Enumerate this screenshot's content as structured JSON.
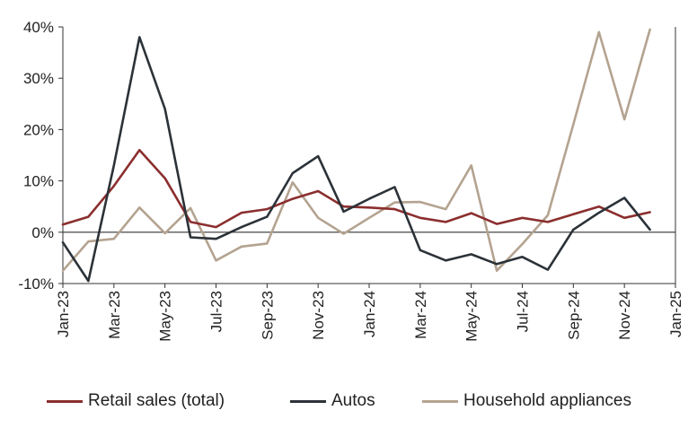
{
  "chart_data": {
    "type": "line",
    "x": [
      "Jan-23",
      "Feb-23",
      "Mar-23",
      "Apr-23",
      "May-23",
      "Jun-23",
      "Jul-23",
      "Aug-23",
      "Sep-23",
      "Oct-23",
      "Nov-23",
      "Dec-23",
      "Jan-24",
      "Feb-24",
      "Mar-24",
      "Apr-24",
      "May-24",
      "Jun-24",
      "Jul-24",
      "Aug-24",
      "Sep-24",
      "Oct-24",
      "Nov-24",
      "Dec-24"
    ],
    "x_ticks": [
      "Jan-23",
      "Mar-23",
      "May-23",
      "Jul-23",
      "Sep-23",
      "Nov-23",
      "Jan-24",
      "Mar-24",
      "May-24",
      "Jul-24",
      "Sep-24",
      "Nov-24",
      "Jan-25"
    ],
    "y_ticks": [
      "40%",
      "30%",
      "20%",
      "10%",
      "0%",
      "-10%"
    ],
    "ylim": [
      -10,
      40
    ],
    "y_unit": "%",
    "grid": false,
    "legend_position": "bottom",
    "series": [
      {
        "name": "Retail sales (total)",
        "color": "#8B2E2E",
        "values": [
          1.5,
          3.0,
          9.0,
          16.0,
          10.5,
          2.0,
          1.0,
          3.8,
          4.5,
          6.5,
          8.0,
          5.0,
          4.8,
          4.5,
          2.8,
          2.0,
          3.7,
          1.6,
          2.8,
          2.0,
          3.5,
          5.0,
          2.8,
          3.9
        ]
      },
      {
        "name": "Autos",
        "color": "#2B3238",
        "values": [
          -2.0,
          -9.5,
          13.0,
          38.0,
          24.0,
          -1.0,
          -1.3,
          1.0,
          3.0,
          11.5,
          14.8,
          4.0,
          6.5,
          8.8,
          -3.5,
          -5.5,
          -4.3,
          -6.2,
          -4.8,
          -7.3,
          0.5,
          3.8,
          6.7,
          0.5
        ]
      },
      {
        "name": "Household appliances",
        "color": "#B4A390",
        "values": [
          -7.5,
          -1.8,
          -1.3,
          4.8,
          -0.2,
          4.7,
          -5.5,
          -2.8,
          -2.2,
          9.7,
          2.8,
          -0.3,
          2.8,
          5.8,
          5.9,
          4.5,
          13.0,
          -7.5,
          -2.3,
          3.3,
          21.0,
          39.0,
          22.0,
          39.5
        ]
      }
    ]
  }
}
